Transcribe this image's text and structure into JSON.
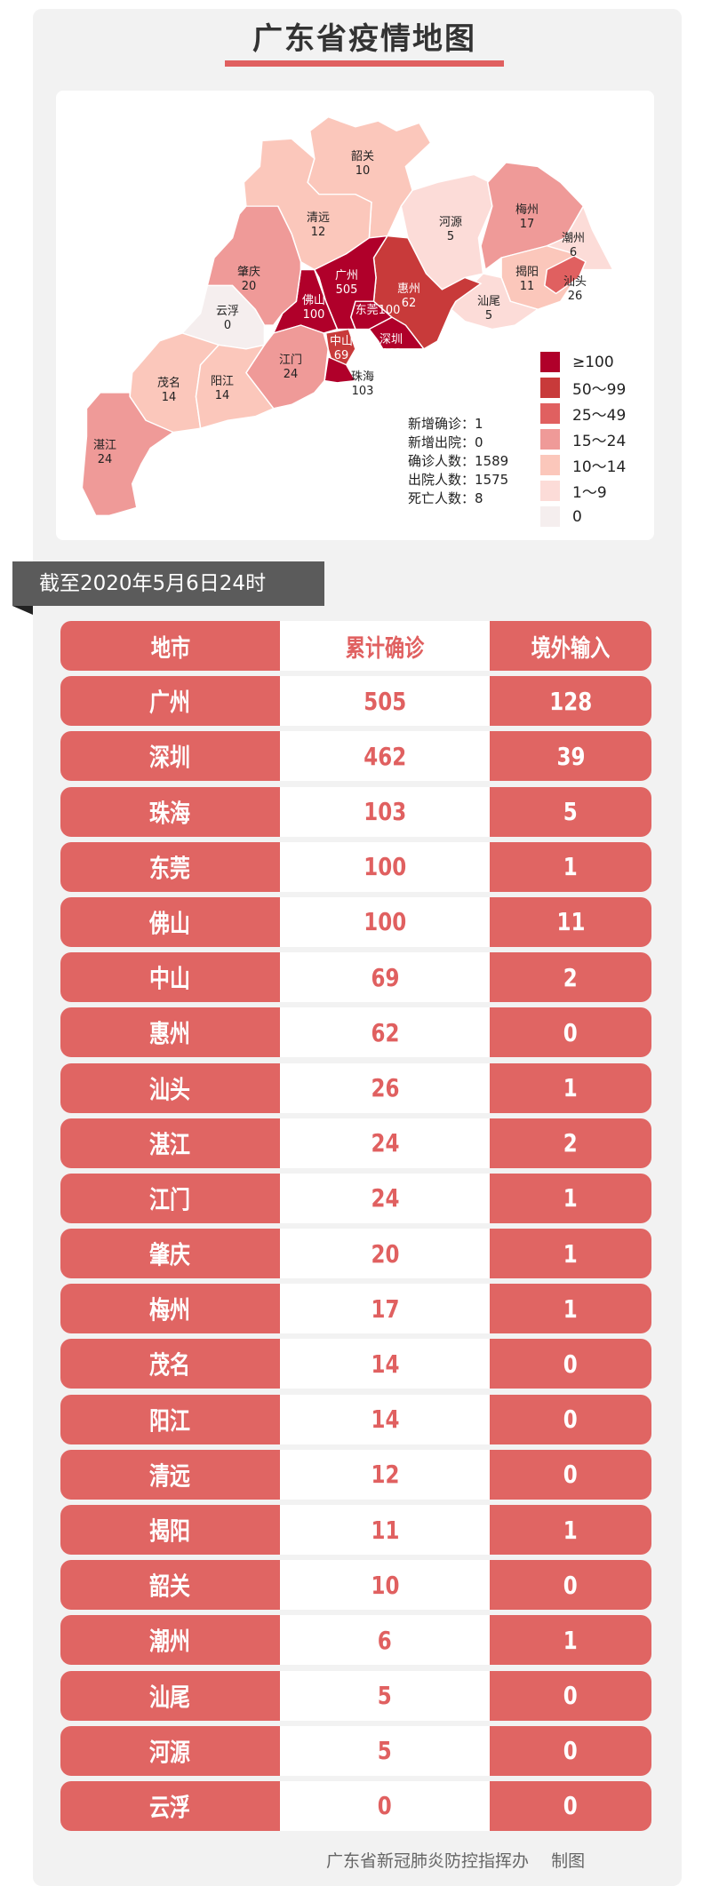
{
  "title": "广东省疫情地图",
  "map": {
    "regions": [
      {
        "name": "韶关",
        "value": "10",
        "color": "#fbc7bb"
      },
      {
        "name": "清远",
        "value": "12",
        "color": "#fbc7bb"
      },
      {
        "name": "河源",
        "value": "5",
        "color": "#fcdcd8"
      },
      {
        "name": "梅州",
        "value": "17",
        "color": "#ef9a98"
      },
      {
        "name": "潮州",
        "value": "6",
        "color": "#fcdcd8"
      },
      {
        "name": "揭阳",
        "value": "11",
        "color": "#fbc7bb"
      },
      {
        "name": "汕头",
        "value": "26",
        "color": "#e06060"
      },
      {
        "name": "汕尾",
        "value": "5",
        "color": "#fcdcd8"
      },
      {
        "name": "惠州",
        "value": "62",
        "color": "#c83a3a"
      },
      {
        "name": "广州",
        "value": "505",
        "color": "#b0002a"
      },
      {
        "name": "东莞",
        "value": "100",
        "color": "#b0002a"
      },
      {
        "name": "深圳",
        "value": "462",
        "color": "#b0002a"
      },
      {
        "name": "佛山",
        "value": "100",
        "color": "#b0002a"
      },
      {
        "name": "中山",
        "value": "69",
        "color": "#c83a3a"
      },
      {
        "name": "珠海",
        "value": "103",
        "color": "#b0002a"
      },
      {
        "name": "江门",
        "value": "24",
        "color": "#ef9a98"
      },
      {
        "name": "肇庆",
        "value": "20",
        "color": "#ef9a98"
      },
      {
        "name": "云浮",
        "value": "0",
        "color": "#f5eeee"
      },
      {
        "name": "茂名",
        "value": "14",
        "color": "#fbc7bb"
      },
      {
        "name": "阳江",
        "value": "14",
        "color": "#fbc7bb"
      },
      {
        "name": "湛江",
        "value": "24",
        "color": "#ef9a98"
      }
    ],
    "stats": [
      {
        "label": "新增确诊",
        "value": "1"
      },
      {
        "label": "新增出院",
        "value": "0"
      },
      {
        "label": "确诊人数",
        "value": "1589"
      },
      {
        "label": "出院人数",
        "value": "1575"
      },
      {
        "label": "死亡人数",
        "value": "8"
      }
    ],
    "legend": [
      {
        "label": "≥100",
        "color": "#b0002a"
      },
      {
        "label": "50～99",
        "color": "#c83a3a"
      },
      {
        "label": "25～49",
        "color": "#e06060"
      },
      {
        "label": "15～24",
        "color": "#ef9a98"
      },
      {
        "label": "10～14",
        "color": "#fbc7bb"
      },
      {
        "label": "1～9",
        "color": "#fcdcd8"
      },
      {
        "label": "0",
        "color": "#f5eeee"
      }
    ]
  },
  "date_banner": "截至2020年5月6日24时",
  "table": {
    "headers": [
      "地市",
      "累计确诊",
      "境外输入"
    ],
    "rows": [
      [
        "广州",
        "505",
        "128"
      ],
      [
        "深圳",
        "462",
        "39"
      ],
      [
        "珠海",
        "103",
        "5"
      ],
      [
        "东莞",
        "100",
        "1"
      ],
      [
        "佛山",
        "100",
        "11"
      ],
      [
        "中山",
        "69",
        "2"
      ],
      [
        "惠州",
        "62",
        "0"
      ],
      [
        "汕头",
        "26",
        "1"
      ],
      [
        "湛江",
        "24",
        "2"
      ],
      [
        "江门",
        "24",
        "1"
      ],
      [
        "肇庆",
        "20",
        "1"
      ],
      [
        "梅州",
        "17",
        "1"
      ],
      [
        "茂名",
        "14",
        "0"
      ],
      [
        "阳江",
        "14",
        "0"
      ],
      [
        "清远",
        "12",
        "0"
      ],
      [
        "揭阳",
        "11",
        "1"
      ],
      [
        "韶关",
        "10",
        "0"
      ],
      [
        "潮州",
        "6",
        "1"
      ],
      [
        "汕尾",
        "5",
        "0"
      ],
      [
        "河源",
        "5",
        "0"
      ],
      [
        "云浮",
        "0",
        "0"
      ]
    ]
  },
  "footer": {
    "org": "广东省新冠肺炎防控指挥办",
    "suffix": "制图"
  }
}
